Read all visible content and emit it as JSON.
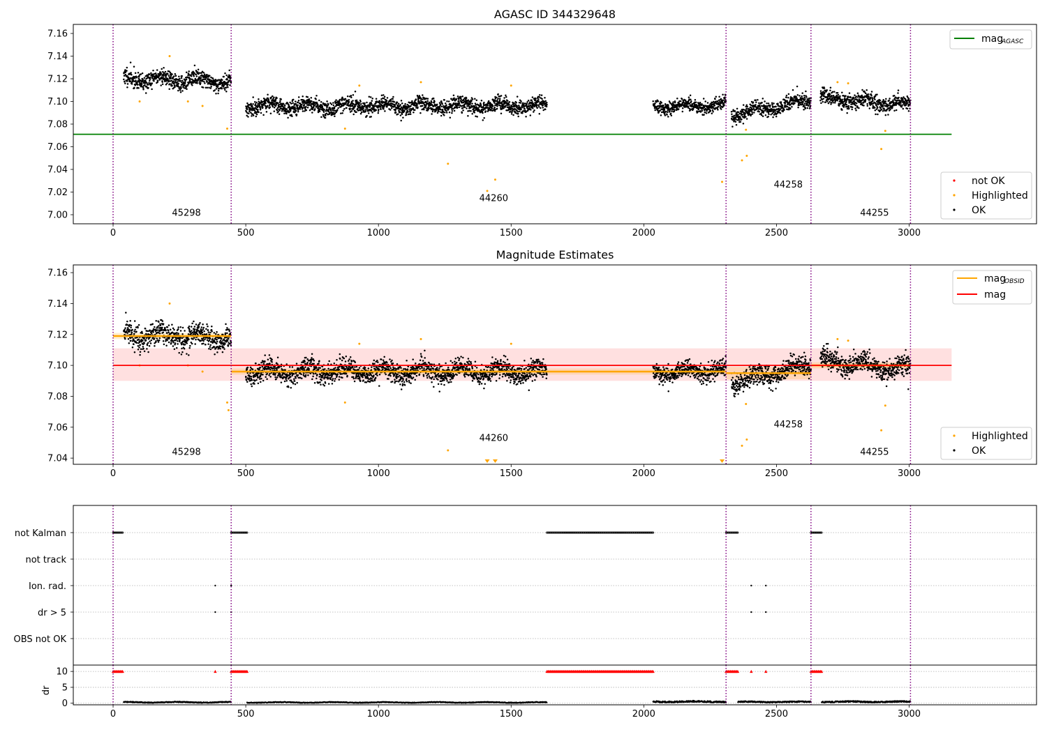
{
  "figure": {
    "title_top": "AGASC ID 344329648",
    "title_mid": "Magnitude Estimates"
  },
  "colors": {
    "ok": "#000000",
    "highlighted": "#ffa500",
    "not_ok": "#ff0000",
    "mag_agasc_line": "#008000",
    "mag_line": "#ff0000",
    "mag_obsid_line": "#ffa500",
    "obsid_boundary": "#800080"
  },
  "chart_data": [
    {
      "type": "scatter",
      "panel": "top",
      "title": "AGASC ID 344329648",
      "xlim": [
        -150,
        3480
      ],
      "ylim": [
        6.992,
        7.168
      ],
      "xticks": [
        0,
        500,
        1000,
        1500,
        2000,
        2500,
        3000
      ],
      "yticks": [
        7.0,
        7.02,
        7.04,
        7.06,
        7.08,
        7.1,
        7.12,
        7.14,
        7.16
      ],
      "obsid_boundaries": [
        0,
        445,
        2310,
        2630,
        3005
      ],
      "obsid_labels": [
        {
          "text": "45298",
          "x": 222,
          "y": 6.999
        },
        {
          "text": "44260",
          "x": 1380,
          "y": 7.012
        },
        {
          "text": "44258",
          "x": 2490,
          "y": 7.024
        },
        {
          "text": "44255",
          "x": 2815,
          "y": 6.999
        }
      ],
      "mag_agasc": 7.071,
      "mag_agasc_xrange": [
        -150,
        3160
      ],
      "ok_segments": [
        {
          "x0": 40,
          "x1": 445,
          "y_start": 7.12,
          "y_end": 7.118,
          "spread": 0.007
        },
        {
          "x0": 500,
          "x1": 1635,
          "y_start": 7.096,
          "y_end": 7.096,
          "spread": 0.006
        },
        {
          "x0": 2035,
          "x1": 2310,
          "y_start": 7.095,
          "y_end": 7.097,
          "spread": 0.005
        },
        {
          "x0": 2330,
          "x1": 2630,
          "y_start": 7.088,
          "y_end": 7.101,
          "spread": 0.006
        },
        {
          "x0": 2665,
          "x1": 3005,
          "y_start": 7.103,
          "y_end": 7.097,
          "spread": 0.006
        }
      ],
      "highlighted_points": [
        [
          100,
          7.1
        ],
        [
          213,
          7.14
        ],
        [
          282,
          7.1
        ],
        [
          337,
          7.096
        ],
        [
          430,
          7.076
        ],
        [
          874,
          7.076
        ],
        [
          928,
          7.114
        ],
        [
          1160,
          7.117
        ],
        [
          1262,
          7.045
        ],
        [
          1410,
          7.021
        ],
        [
          1440,
          7.031
        ],
        [
          1500,
          7.114
        ],
        [
          2295,
          7.029
        ],
        [
          2370,
          7.048
        ],
        [
          2385,
          7.075
        ],
        [
          2388,
          7.052
        ],
        [
          2730,
          7.117
        ],
        [
          2770,
          7.116
        ],
        [
          2895,
          7.058
        ],
        [
          2910,
          7.074
        ]
      ],
      "legend_lines": [
        {
          "label": "mag",
          "subscript": "AGASC"
        }
      ],
      "legend_points": [
        "not OK",
        "Highlighted",
        "OK"
      ]
    },
    {
      "type": "scatter",
      "panel": "middle",
      "title": "Magnitude Estimates",
      "xlim": [
        -150,
        3480
      ],
      "ylim": [
        7.036,
        7.165
      ],
      "xticks": [
        0,
        500,
        1000,
        1500,
        2000,
        2500,
        3000
      ],
      "yticks": [
        7.04,
        7.06,
        7.08,
        7.1,
        7.12,
        7.14,
        7.16
      ],
      "obsid_boundaries": [
        0,
        445,
        2310,
        2630,
        3005
      ],
      "obsid_labels": [
        {
          "text": "45298",
          "x": 222,
          "y": 7.042
        },
        {
          "text": "44260",
          "x": 1380,
          "y": 7.051
        },
        {
          "text": "44258",
          "x": 2490,
          "y": 7.06
        },
        {
          "text": "44255",
          "x": 2815,
          "y": 7.042
        }
      ],
      "mag": 7.1,
      "mag_band": [
        7.09,
        7.111
      ],
      "mag_xrange": [
        0,
        3160
      ],
      "mag_obsid": [
        {
          "x0": 0,
          "x1": 445,
          "value": 7.119,
          "band": [
            7.117,
            7.121
          ]
        },
        {
          "x0": 445,
          "x1": 2310,
          "value": 7.096,
          "band": [
            7.094,
            7.098
          ]
        },
        {
          "x0": 2310,
          "x1": 2630,
          "value": 7.095,
          "band": [
            7.091,
            7.099
          ]
        },
        {
          "x0": 2630,
          "x1": 3005,
          "value": 7.1,
          "band": [
            7.098,
            7.102
          ]
        }
      ],
      "ok_segments": [
        {
          "x0": 40,
          "x1": 445,
          "y_start": 7.12,
          "y_end": 7.118,
          "spread": 0.007
        },
        {
          "x0": 500,
          "x1": 1635,
          "y_start": 7.096,
          "y_end": 7.096,
          "spread": 0.006
        },
        {
          "x0": 2035,
          "x1": 2310,
          "y_start": 7.095,
          "y_end": 7.097,
          "spread": 0.005
        },
        {
          "x0": 2330,
          "x1": 2630,
          "y_start": 7.088,
          "y_end": 7.101,
          "spread": 0.006
        },
        {
          "x0": 2665,
          "x1": 3005,
          "y_start": 7.103,
          "y_end": 7.097,
          "spread": 0.006
        }
      ],
      "highlighted_points": [
        [
          100,
          7.1
        ],
        [
          213,
          7.14
        ],
        [
          282,
          7.1
        ],
        [
          337,
          7.096
        ],
        [
          430,
          7.076
        ],
        [
          435,
          7.071
        ],
        [
          874,
          7.076
        ],
        [
          928,
          7.114
        ],
        [
          1160,
          7.117
        ],
        [
          1262,
          7.045
        ],
        [
          1500,
          7.114
        ],
        [
          2370,
          7.048
        ],
        [
          2385,
          7.075
        ],
        [
          2388,
          7.052
        ],
        [
          2730,
          7.117
        ],
        [
          2770,
          7.116
        ],
        [
          2895,
          7.058
        ],
        [
          2910,
          7.074
        ]
      ],
      "offscale_markers": [
        1410,
        1440,
        2295
      ],
      "legend_lines": [
        {
          "label": "mag",
          "subscript": "OBSID"
        },
        {
          "label": "mag",
          "subscript": ""
        }
      ],
      "legend_points": [
        "Highlighted",
        "OK"
      ]
    },
    {
      "type": "scatter",
      "panel": "flags",
      "xlim": [
        -150,
        3480
      ],
      "categories": [
        "not Kalman",
        "not track",
        "Ion. rad.",
        "dr > 5",
        "OBS not OK"
      ],
      "obsid_boundaries": [
        0,
        445,
        2310,
        2630,
        3005
      ],
      "flag_ranges": [
        {
          "flag": "not Kalman",
          "x0": 0,
          "x1": 38
        },
        {
          "flag": "not Kalman",
          "x0": 445,
          "x1": 505
        },
        {
          "flag": "not Kalman",
          "x0": 1635,
          "x1": 2035
        },
        {
          "flag": "not Kalman",
          "x0": 2310,
          "x1": 2355
        },
        {
          "flag": "not Kalman",
          "x0": 2630,
          "x1": 2670
        }
      ],
      "flag_points": [
        {
          "flag": "Ion. rad.",
          "x": [
            385,
            445,
            2405,
            2460
          ]
        },
        {
          "flag": "dr > 5",
          "x": [
            385,
            445,
            2405,
            2460
          ]
        }
      ]
    },
    {
      "type": "scatter",
      "panel": "dr",
      "xlim": [
        -150,
        3480
      ],
      "ylim": [
        -0.5,
        12
      ],
      "ylabel": "dr",
      "xticks": [
        0,
        500,
        1000,
        1500,
        2000,
        2500,
        3000
      ],
      "yticks": [
        0,
        5,
        10
      ],
      "obsid_boundaries": [
        0,
        445,
        2310,
        2630,
        3005
      ],
      "capped_value": 10,
      "capped_ranges": [
        {
          "x0": 0,
          "x1": 38
        },
        {
          "x0": 445,
          "x1": 505
        },
        {
          "x0": 1635,
          "x1": 2035
        },
        {
          "x0": 2310,
          "x1": 2355
        },
        {
          "x0": 2630,
          "x1": 2670
        }
      ],
      "capped_points": [
        385,
        2405,
        2460
      ],
      "ok_segments": [
        {
          "x0": 40,
          "x1": 445,
          "level": 0.3
        },
        {
          "x0": 505,
          "x1": 1635,
          "level": 0.25
        },
        {
          "x0": 2035,
          "x1": 2310,
          "level": 0.5
        },
        {
          "x0": 2355,
          "x1": 2630,
          "level": 0.4
        },
        {
          "x0": 2670,
          "x1": 3005,
          "level": 0.45
        }
      ]
    }
  ]
}
